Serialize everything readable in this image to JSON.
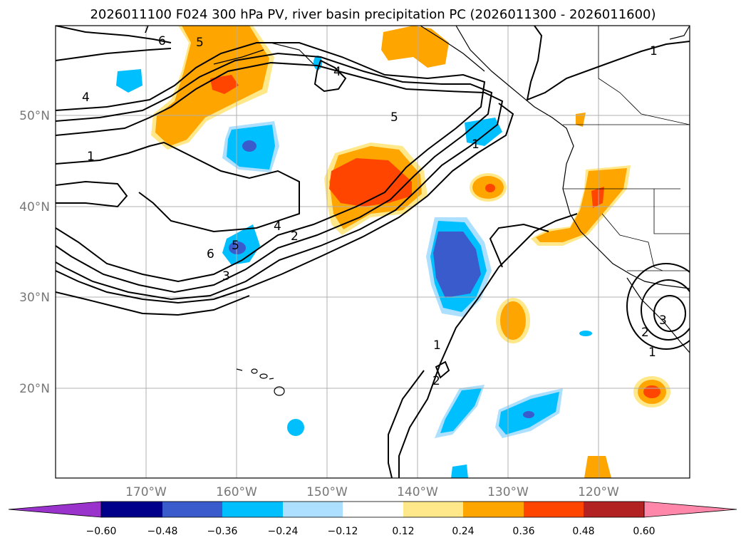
{
  "title": "2026011100 F024 300 hPa PV, river basin precipitation PC (2026011300 - 2026011600)",
  "lat_labels": [
    "50°N",
    "40°N",
    "30°N",
    "20°N"
  ],
  "lon_labels": [
    "170°W",
    "160°W",
    "150°W",
    "140°W",
    "130°W",
    "120°W"
  ],
  "colorbar": {
    "ticks": [
      "−0.60",
      "−0.48",
      "−0.36",
      "−0.24",
      "−0.12",
      "0.12",
      "0.24",
      "0.36",
      "0.48",
      "0.60"
    ],
    "colors": [
      "#9933cc",
      "#00008b",
      "#3a5bcc",
      "#00bfff",
      "#addfff",
      "#ffffff",
      "#ffe88a",
      "#ffa500",
      "#ff4500",
      "#b22222",
      "#ff88aa"
    ]
  },
  "contour_labels": [
    "1",
    "2",
    "3",
    "4",
    "5",
    "6",
    "7"
  ]
}
